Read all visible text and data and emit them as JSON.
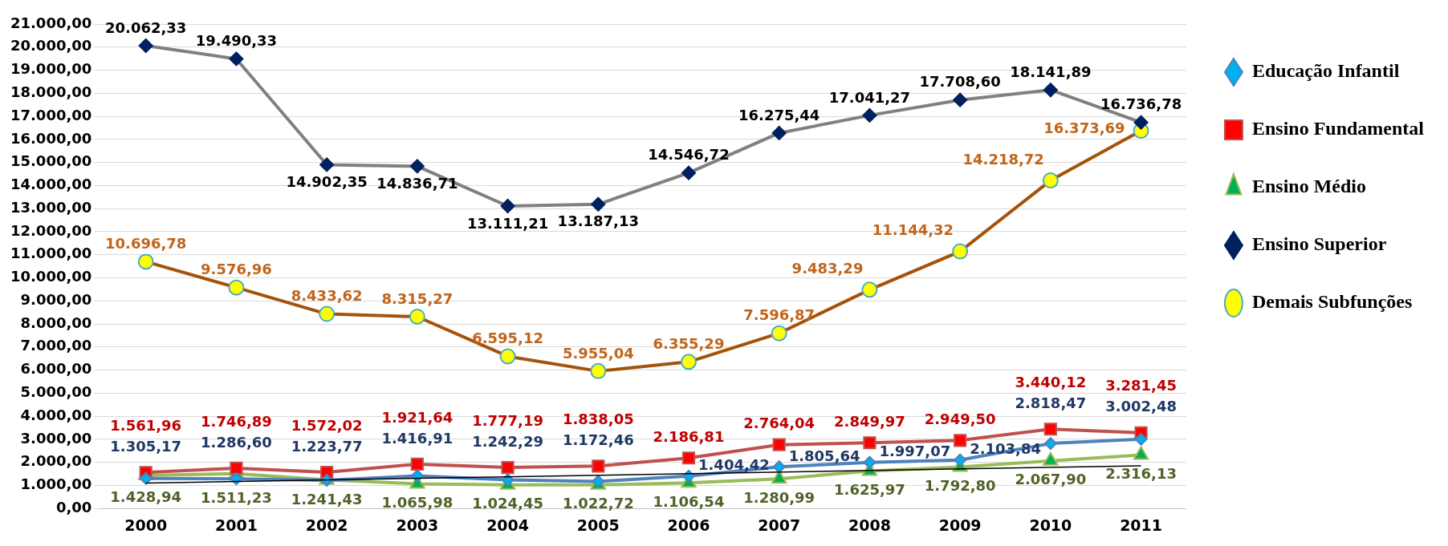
{
  "chart_data": {
    "type": "line",
    "categories": [
      "2000",
      "2001",
      "2002",
      "2003",
      "2004",
      "2005",
      "2006",
      "2007",
      "2008",
      "2009",
      "2010",
      "2011"
    ],
    "series": [
      {
        "name": "Educação Infantil",
        "color": "#4f81bd",
        "marker": "diamond",
        "values": [
          1305.17,
          1286.6,
          1223.77,
          1416.91,
          1242.29,
          1172.46,
          1404.42,
          1805.64,
          1997.07,
          2103.84,
          2818.47,
          3002.48
        ],
        "value_labels": [
          "1.305,17",
          "1.286,60",
          "1.223,77",
          "1.416,91",
          "1.242,29",
          "1.172,46",
          "1.404,42",
          "1.805,64",
          "1.997,07",
          "2.103,84",
          "2.818,47",
          "3.002,48"
        ]
      },
      {
        "name": "Ensino Fundamental",
        "color": "#c0504d",
        "marker": "square",
        "values": [
          1561.96,
          1746.89,
          1572.02,
          1921.64,
          1777.19,
          1838.05,
          2186.81,
          2764.04,
          2849.97,
          2949.5,
          3440.12,
          3281.45
        ],
        "value_labels": [
          "1.561,96",
          "1.746,89",
          "1.572,02",
          "1.921,64",
          "1.777,19",
          "1.838,05",
          "2.186,81",
          "2.764,04",
          "2.849,97",
          "2.949,50",
          "3.440,12",
          "3.281,45"
        ]
      },
      {
        "name": "Ensino Médio",
        "color": "#9bbb59",
        "marker": "triangle",
        "values": [
          1428.94,
          1511.23,
          1241.43,
          1065.98,
          1024.45,
          1022.72,
          1106.54,
          1280.99,
          1625.97,
          1792.8,
          2067.9,
          2316.13
        ],
        "value_labels": [
          "1.428,94",
          "1.511,23",
          "1.241,43",
          "1.065,98",
          "1.024,45",
          "1.022,72",
          "1.106,54",
          "1.280,99",
          "1.625,97",
          "1.792,80",
          "2.067,90",
          "2.316,13"
        ]
      },
      {
        "name": "Ensino Superior",
        "color": "#808080",
        "marker": "diamond",
        "values": [
          20062.33,
          19490.33,
          14902.35,
          14836.71,
          13111.21,
          13187.13,
          14546.72,
          16275.44,
          17041.27,
          17708.6,
          18141.89,
          16736.78
        ],
        "value_labels": [
          "20.062,33",
          "19.490,33",
          "14.902,35",
          "14.836,71",
          "13.111,21",
          "13.187,13",
          "14.546,72",
          "16.275,44",
          "17.041,27",
          "17.708,60",
          "18.141,89",
          "16.736,78"
        ]
      },
      {
        "name": "Demais Subfunções",
        "color": "#a5520a",
        "marker": "circle",
        "values": [
          10696.78,
          9576.96,
          8433.62,
          8315.27,
          6595.12,
          5955.04,
          6355.29,
          7596.87,
          9483.29,
          11144.32,
          14218.72,
          16373.69
        ],
        "value_labels": [
          "10.696,78",
          "9.576,96",
          "8.433,62",
          "8.315,27",
          "6.595,12",
          "5.955,04",
          "6.355,29",
          "7.596,87",
          "9.483,29",
          "11.144,32",
          "14.218,72",
          "16.373,69"
        ]
      },
      {
        "type": "line",
        "color": "#000000",
        "marker": "none",
        "values": [
          1100,
          null,
          null,
          null,
          null,
          null,
          null,
          null,
          null,
          null,
          null,
          1850
        ],
        "value_labels": [
          null,
          null,
          null,
          null,
          null,
          null,
          null,
          null,
          null,
          null,
          null,
          null
        ]
      }
    ],
    "ylim": [
      0,
      21000
    ],
    "yticks": [
      {
        "value": 0,
        "label": "0,00"
      },
      {
        "value": 1000,
        "label": "1.000,00"
      },
      {
        "value": 2000,
        "label": "2.000,00"
      },
      {
        "value": 3000,
        "label": "3.000,00"
      },
      {
        "value": 4000,
        "label": "4.000,00"
      },
      {
        "value": 5000,
        "label": "5.000,00"
      },
      {
        "value": 6000,
        "label": "6.000,00"
      },
      {
        "value": 7000,
        "label": "7.000,00"
      },
      {
        "value": 8000,
        "label": "8.000,00"
      },
      {
        "value": 9000,
        "label": "9.000,00"
      },
      {
        "value": 10000,
        "label": "10.000,00"
      },
      {
        "value": 11000,
        "label": "11.000,00"
      },
      {
        "value": 12000,
        "label": "12.000,00"
      },
      {
        "value": 13000,
        "label": "13.000,00"
      },
      {
        "value": 14000,
        "label": "14.000,00"
      },
      {
        "value": 15000,
        "label": "15.000,00"
      },
      {
        "value": 16000,
        "label": "16.000,00"
      },
      {
        "value": 17000,
        "label": "17.000,00"
      },
      {
        "value": 18000,
        "label": "18.000,00"
      },
      {
        "value": 19000,
        "label": "19.000,00"
      },
      {
        "value": 20000,
        "label": "20.000,00"
      },
      {
        "value": 21000,
        "label": "21.000,00"
      }
    ],
    "grid": "y",
    "legend": "right",
    "data_labels": true
  }
}
